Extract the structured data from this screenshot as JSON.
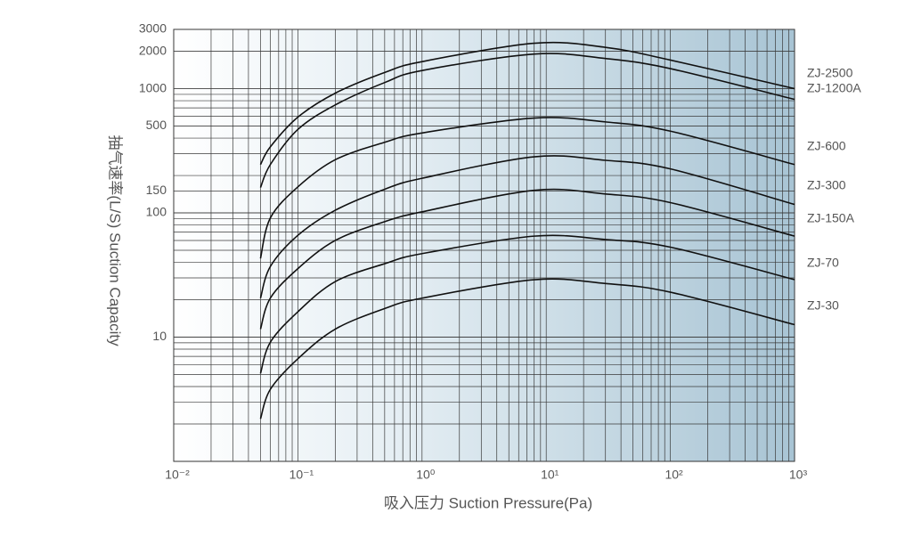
{
  "chart_data": {
    "type": "line",
    "x_label": "吸入压力 Suction Pressure(Pa)",
    "y_label": "抽气速率(L/S) Suction Capacity",
    "x": [
      0.05,
      0.06,
      0.1,
      0.2,
      0.5,
      1,
      8,
      30,
      100,
      1000
    ],
    "series": [
      {
        "name": "ZJ-2500",
        "color": "#111111",
        "values": [
          245,
          340,
          590,
          920,
          1350,
          1650,
          2320,
          2150,
          1700,
          1000
        ]
      },
      {
        "name": "ZJ-1200A",
        "color": "#111111",
        "values": [
          160,
          245,
          470,
          740,
          1120,
          1400,
          1900,
          1750,
          1450,
          820
        ]
      },
      {
        "name": "ZJ-600",
        "color": "#111111",
        "values": [
          43,
          91,
          162,
          268,
          370,
          440,
          580,
          540,
          455,
          245
        ]
      },
      {
        "name": "ZJ-300",
        "color": "#111111",
        "values": [
          20.6,
          37,
          66,
          105,
          155,
          190,
          283,
          265,
          226,
          117
        ]
      },
      {
        "name": "ZJ-150A",
        "color": "#111111",
        "values": [
          11.6,
          20.6,
          35.6,
          60,
          85,
          102,
          152,
          142,
          121,
          65
        ]
      },
      {
        "name": "ZJ-70",
        "color": "#111111",
        "values": [
          5.1,
          9.1,
          16,
          28,
          39,
          47,
          65,
          61,
          53,
          29
        ]
      },
      {
        "name": "ZJ-30",
        "color": "#111111",
        "values": [
          2.2,
          3.8,
          6.7,
          11.6,
          17,
          20.6,
          29,
          27,
          23,
          12.6
        ]
      }
    ],
    "log_x": true,
    "log_y": true,
    "grid": true,
    "xlim": [
      0.01,
      1000
    ],
    "xticks": [
      {
        "value": 0.01,
        "label": "10⁻²"
      },
      {
        "value": 0.1,
        "label": "10⁻¹"
      },
      {
        "value": 1,
        "label": "10⁰"
      },
      {
        "value": 10,
        "label": "10¹"
      },
      {
        "value": 100,
        "label": "10²"
      },
      {
        "value": 1000,
        "label": "10³"
      }
    ],
    "ylim": [
      1,
      3000
    ],
    "yticks": [
      10,
      100,
      150,
      500,
      1000,
      2000,
      3000
    ]
  }
}
